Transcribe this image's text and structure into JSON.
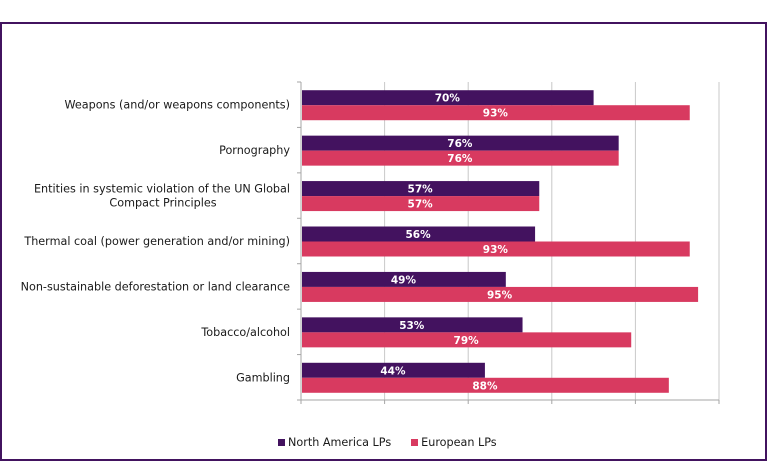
{
  "chart_data": {
    "type": "bar",
    "orientation": "horizontal",
    "title": "",
    "xlabel": "",
    "ylabel": "",
    "xlim": [
      0,
      100
    ],
    "x_tick_values": [
      0,
      20,
      40,
      60,
      80,
      100
    ],
    "x_tick_labels_visible": false,
    "grid": true,
    "value_suffix": "%",
    "legend_position": "bottom",
    "categories": [
      "Weapons (and/or weapons components)",
      "Pornography",
      "Entities in systemic violation of the UN Global Compact Principles",
      "Thermal coal (power generation and/or mining)",
      "Non-sustainable deforestation or land clearance",
      "Tobacco/alcohol",
      "Gambling"
    ],
    "category_label_lines": [
      [
        "Weapons (and/or weapons components)"
      ],
      [
        "Pornography"
      ],
      [
        "Entities in systemic violation of the UN Global",
        "Compact Principles"
      ],
      [
        "Thermal coal (power generation and/or mining)"
      ],
      [
        "Non-sustainable deforestation or land clearance"
      ],
      [
        "Tobacco/alcohol"
      ],
      [
        "Gambling"
      ]
    ],
    "series": [
      {
        "name": "North America LPs",
        "color": "#43125F",
        "values": [
          70,
          76,
          57,
          56,
          49,
          53,
          44
        ]
      },
      {
        "name": "European LPs",
        "color": "#D83A60",
        "values": [
          93,
          76,
          57,
          93,
          95,
          79,
          88
        ]
      }
    ]
  },
  "colors": {
    "frame_border": "#42135F",
    "gridline": "#c8c8c8",
    "axis": "#a6a6a6"
  }
}
